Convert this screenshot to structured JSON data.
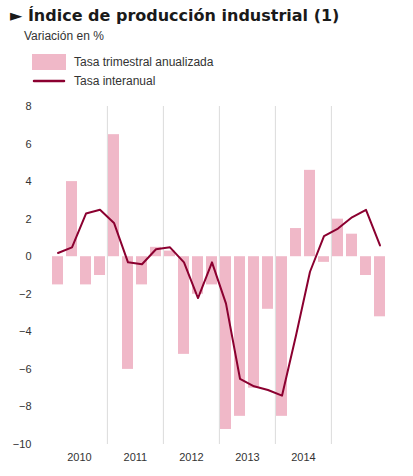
{
  "chart_data": {
    "type": "bar",
    "title": "► Índice de producción industrial (1)",
    "subtitle": "Variación en %",
    "categories": [
      null,
      "2010",
      null,
      null,
      null,
      "2011",
      null,
      null,
      null,
      "2012",
      null,
      null,
      null,
      "2013",
      null,
      null,
      null,
      "2014",
      null,
      null,
      null,
      null,
      null,
      null
    ],
    "series": [
      {
        "name": "Tasa trimestral anualizada",
        "type": "bar",
        "color": "#f0b8c8",
        "values": [
          -1.5,
          4.0,
          -1.5,
          -1.0,
          6.5,
          -6.0,
          -1.5,
          0.5,
          0.3,
          -5.2,
          -2.0,
          -1.5,
          -9.2,
          -8.5,
          -7.0,
          -2.8,
          -8.5,
          1.5,
          4.6,
          -0.3,
          2.0,
          1.2,
          -1.0,
          -3.2
        ]
      },
      {
        "name": "Tasa interanual",
        "type": "line",
        "color": "#8b0030",
        "values": [
          0.2,
          0.5,
          2.3,
          2.5,
          1.8,
          -0.3,
          -0.4,
          0.4,
          0.5,
          -0.3,
          -2.2,
          -0.3,
          -2.5,
          -6.5,
          -6.9,
          -7.1,
          -7.4,
          -4.2,
          -0.8,
          1.1,
          1.5,
          2.1,
          2.5,
          0.6
        ]
      }
    ],
    "ylim": [
      -10,
      8
    ],
    "yticks": [
      -10,
      -8,
      -6,
      -4,
      -2,
      0,
      2,
      4,
      6,
      8
    ],
    "grid": true,
    "legend": "top"
  }
}
